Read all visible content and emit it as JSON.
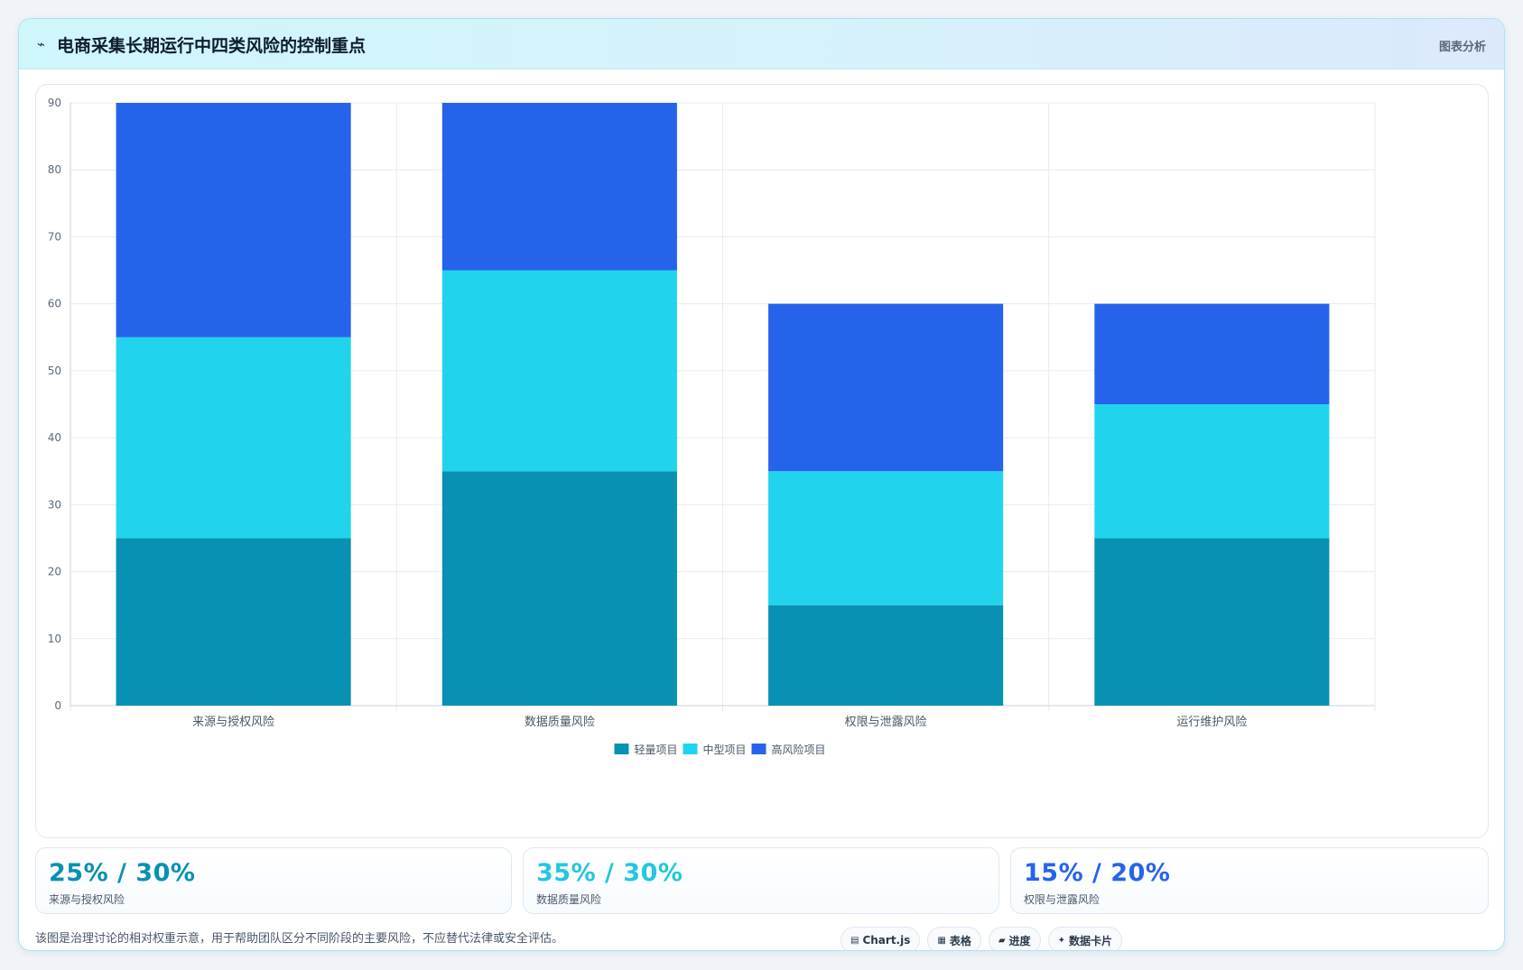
{
  "header": {
    "icon": "⌁",
    "title": "电商采集长期运行中四类风险的控制重点",
    "link": "图表分析"
  },
  "chart_data": {
    "type": "bar",
    "stacked": true,
    "categories": [
      "来源与授权风险",
      "数据质量风险",
      "权限与泄露风险",
      "运行维护风险"
    ],
    "series": [
      {
        "name": "轻量项目",
        "color": "#0891b2",
        "values": [
          25,
          35,
          15,
          25
        ]
      },
      {
        "name": "中型项目",
        "color": "#22d3ee",
        "values": [
          30,
          30,
          20,
          20
        ]
      },
      {
        "name": "高风险项目",
        "color": "#2563eb",
        "values": [
          35,
          25,
          25,
          15
        ]
      }
    ],
    "ylim": [
      0,
      90
    ],
    "yticks": [
      0,
      10,
      20,
      30,
      40,
      50,
      60,
      70,
      80,
      90
    ],
    "grid": true,
    "legend_position": "bottom"
  },
  "stats": [
    {
      "value": "25% / 30%",
      "label": "来源与授权风险",
      "color": "#0891b2"
    },
    {
      "value": "35% / 30%",
      "label": "数据质量风险",
      "color": "#22c7e0"
    },
    {
      "value": "15% / 20%",
      "label": "权限与泄露风险",
      "color": "#2563eb"
    }
  ],
  "footnote": "该图是治理讨论的相对权重示意，用于帮助团队区分不同阶段的主要风险，不应替代法律或安全评估。",
  "chips": [
    {
      "icon": "▤",
      "label": "Chart.js"
    },
    {
      "icon": "▦",
      "label": "表格"
    },
    {
      "icon": "▰",
      "label": "进度"
    },
    {
      "icon": "✦",
      "label": "数据卡片"
    }
  ]
}
